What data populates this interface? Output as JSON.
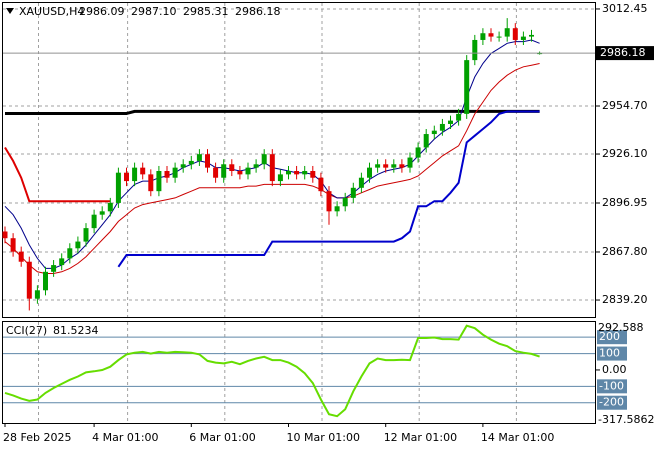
{
  "chart_data": [
    {
      "type": "candlestick",
      "title": "XAUUSD,H4",
      "ohlc_labels": [
        "2986.09",
        "2987.10",
        "2985.31",
        "2986.18"
      ],
      "categories": [
        "28 Feb 2025",
        null,
        null,
        null,
        null,
        null,
        null,
        null,
        null,
        null,
        null,
        "4 Mar 01:00",
        null,
        null,
        null,
        null,
        null,
        null,
        null,
        null,
        null,
        null,
        null,
        "6 Mar 01:00",
        null,
        null,
        null,
        null,
        null,
        null,
        null,
        null,
        null,
        null,
        null,
        "10 Mar 01:00",
        null,
        null,
        null,
        null,
        null,
        null,
        null,
        null,
        null,
        null,
        null,
        "12 Mar 01:00",
        null,
        null,
        null,
        null,
        null,
        null,
        null,
        null,
        null,
        null,
        null,
        "14 Mar 01:00",
        null,
        null,
        null,
        null,
        null,
        null,
        null
      ],
      "candles": {
        "open": [
          2880,
          2876,
          2868,
          2862,
          2840,
          2845,
          2856,
          2860,
          2864,
          2870,
          2874,
          2882,
          2890,
          2892,
          2897,
          2915,
          2910,
          2918,
          2914,
          2904,
          2916,
          2912,
          2918,
          2920,
          2922,
          2926,
          2918,
          2912,
          2920,
          2916,
          2914,
          2918,
          2920,
          2926,
          2910,
          2914,
          2916,
          2914,
          2916,
          2912,
          2904,
          2892,
          2895,
          2900,
          2906,
          2912,
          2918,
          2920,
          2918,
          2920,
          2918,
          2924,
          2930,
          2938,
          2940,
          2944,
          2946,
          2950,
          2982,
          2994,
          2998,
          2996,
          2996,
          3001,
          2994,
          2996,
          2986.09
        ],
        "high": [
          2883,
          2879,
          2871,
          2865,
          2848,
          2859,
          2863,
          2867,
          2873,
          2877,
          2885,
          2893,
          2895,
          2900,
          2918,
          2918,
          2921,
          2921,
          2917,
          2919,
          2919,
          2921,
          2923,
          2925,
          2929,
          2929,
          2921,
          2923,
          2923,
          2919,
          2921,
          2923,
          2929,
          2929,
          2917,
          2919,
          2919,
          2919,
          2919,
          2915,
          2907,
          2898,
          2903,
          2909,
          2915,
          2921,
          2923,
          2923,
          2923,
          2923,
          2927,
          2933,
          2941,
          2943,
          2947,
          2949,
          2953,
          2985,
          2997,
          3001,
          3001,
          2999,
          3007,
          3004,
          2999,
          3000,
          2987.1
        ],
        "low": [
          2873,
          2865,
          2859,
          2833,
          2837,
          2842,
          2853,
          2857,
          2861,
          2867,
          2871,
          2879,
          2887,
          2889,
          2894,
          2907,
          2907,
          2911,
          2901,
          2901,
          2909,
          2909,
          2915,
          2917,
          2919,
          2915,
          2909,
          2909,
          2913,
          2911,
          2911,
          2915,
          2917,
          2907,
          2907,
          2911,
          2911,
          2911,
          2909,
          2901,
          2884,
          2889,
          2892,
          2897,
          2903,
          2909,
          2915,
          2915,
          2915,
          2915,
          2915,
          2921,
          2927,
          2935,
          2937,
          2941,
          2943,
          2947,
          2979,
          2991,
          2993,
          2993,
          2993,
          2991,
          2991,
          2993,
          2985.31
        ],
        "close": [
          2876,
          2868,
          2862,
          2840,
          2845,
          2856,
          2860,
          2864,
          2870,
          2874,
          2882,
          2890,
          2892,
          2897,
          2915,
          2910,
          2918,
          2914,
          2904,
          2916,
          2912,
          2918,
          2920,
          2922,
          2926,
          2918,
          2912,
          2920,
          2916,
          2914,
          2918,
          2920,
          2926,
          2910,
          2914,
          2916,
          2914,
          2916,
          2912,
          2904,
          2892,
          2895,
          2900,
          2906,
          2912,
          2918,
          2920,
          2918,
          2920,
          2918,
          2924,
          2930,
          2938,
          2940,
          2944,
          2946,
          2950,
          2982,
          2994,
          2998,
          2996,
          2996,
          3001,
          2994,
          2996,
          2997,
          2986.18
        ],
        "up_color": "#00a000",
        "down_color": "#e00000"
      },
      "series": [
        {
          "color": "#000000",
          "width": 3,
          "values": [
            2950.2,
            2950.2,
            2950.2,
            2950.2,
            2950.2,
            2950.2,
            2950.2,
            2950.2,
            2950.2,
            2950.2,
            2950.2,
            2950.2,
            2950.2,
            2950.2,
            2950.2,
            2950.2,
            2951.5,
            2951.5,
            2951.5,
            2951.5,
            2951.5,
            2951.5,
            2951.5,
            2951.5,
            2951.5,
            2951.5,
            2951.5,
            2951.5,
            2951.5,
            2951.5,
            2951.5,
            2951.5,
            2951.5,
            2951.5,
            2951.5,
            2951.5,
            2951.5,
            2951.5,
            2951.5,
            2951.5,
            2951.5,
            2951.5,
            2951.5,
            2951.5,
            2951.5,
            2951.5,
            2951.5,
            2951.5,
            2951.5,
            2951.5,
            2951.5,
            2951.5,
            2951.5,
            2951.5,
            2951.5,
            2951.5,
            2951.5,
            2951.5,
            2951.5,
            2951.5,
            2951.5,
            2951.5,
            2951.5,
            2951.5,
            2951.5,
            2951.5,
            2951.5
          ]
        },
        {
          "color": "#dd0000",
          "width": 2,
          "values": [
            2930,
            2922,
            2912,
            2898,
            2898,
            2898,
            2898,
            2898,
            2898,
            2898,
            2898,
            2898,
            2898,
            2898,
            null,
            null,
            null,
            null,
            null,
            null,
            null,
            null,
            null,
            null,
            null,
            null,
            null,
            null,
            null,
            null,
            null,
            null,
            null,
            null,
            null,
            null,
            null,
            null,
            null,
            null,
            null,
            null,
            null,
            null,
            null,
            null,
            null,
            null,
            null,
            null,
            null,
            null,
            null,
            null,
            null,
            null,
            null,
            null,
            null,
            null,
            null,
            null,
            null,
            null,
            null,
            null,
            null
          ]
        },
        {
          "color": "#0000cc",
          "width": 2,
          "values": [
            null,
            null,
            null,
            null,
            null,
            null,
            null,
            null,
            null,
            null,
            null,
            null,
            null,
            null,
            2859,
            2866,
            2866,
            2866,
            2866,
            2866,
            2866,
            2866,
            2866,
            2866,
            2866,
            2866,
            2866,
            2866,
            2866,
            2866,
            2866,
            2866,
            2866,
            2874,
            2874,
            2874,
            2874,
            2874,
            2874,
            2874,
            2874,
            2874,
            2874,
            2874,
            2874,
            2874,
            2874,
            2874,
            2874,
            2876,
            2880,
            2895,
            2895,
            2898,
            2898,
            2903,
            2909,
            2933,
            2937,
            2941,
            2945,
            2950,
            2951.4,
            2951.4,
            2951.4,
            2951.4,
            2951.4
          ]
        },
        {
          "color": "#cc0000",
          "width": 1,
          "values": [
            2874,
            2870,
            2865,
            2860,
            2856,
            2855,
            2855,
            2856,
            2858,
            2861,
            2865,
            2870,
            2875,
            2880,
            2886,
            2890,
            2894,
            2896,
            2897,
            2898,
            2899,
            2900,
            2902,
            2904,
            2906,
            2906,
            2906,
            2906,
            2906,
            2906,
            2907,
            2907,
            2908,
            2908,
            2908,
            2908,
            2908,
            2908,
            2907,
            2905,
            2902,
            2900,
            2900,
            2901,
            2903,
            2905,
            2907,
            2908,
            2909,
            2910,
            2911,
            2913,
            2917,
            2921,
            2925,
            2928,
            2931,
            2940,
            2950,
            2957,
            2964,
            2969,
            2973,
            2976,
            2978,
            2979,
            2980
          ]
        },
        {
          "color": "#00008b",
          "width": 1,
          "values": [
            2895,
            2890,
            2882,
            2872,
            2864,
            2858,
            2858,
            2860,
            2864,
            2867,
            2872,
            2878,
            2884,
            2890,
            2898,
            2903,
            2908,
            2910,
            2910,
            2912,
            2913,
            2915,
            2918,
            2920,
            2922,
            2921,
            2918,
            2918,
            2917,
            2916,
            2917,
            2918,
            2921,
            2918,
            2917,
            2916,
            2915,
            2915,
            2914,
            2910,
            2903,
            2900,
            2900,
            2903,
            2907,
            2911,
            2914,
            2916,
            2917,
            2918,
            2920,
            2925,
            2930,
            2935,
            2939,
            2942,
            2946,
            2960,
            2972,
            2980,
            2986,
            2989,
            2992,
            2993,
            2993,
            2994,
            2992
          ]
        }
      ],
      "ylim": [
        2829.1,
        3016.0
      ],
      "yticks": [
        3012.45,
        {
          "value": 2954.7,
          "label": "2954.70"
        },
        {
          "value": 2926.1,
          "label": "2926.10"
        },
        2896.95,
        {
          "value": 2867.8,
          "label": "2867.80"
        },
        {
          "value": 2839.2,
          "label": "2839.20"
        }
      ],
      "grid": true
    },
    {
      "type": "line",
      "title": "CCI(27)",
      "series": [
        {
          "color": "#66dd00",
          "width": 2,
          "values": [
            -140,
            -155,
            -175,
            -188,
            -180,
            -140,
            -110,
            -85,
            -60,
            -40,
            -15,
            -8,
            0,
            20,
            60,
            95,
            105,
            110,
            100,
            110,
            105,
            110,
            108,
            105,
            95,
            55,
            45,
            40,
            50,
            35,
            55,
            70,
            80,
            60,
            60,
            45,
            20,
            -20,
            -80,
            -180,
            -270,
            -282,
            -240,
            -130,
            -40,
            40,
            70,
            60,
            60,
            62,
            60,
            195,
            195,
            198,
            188,
            188,
            185,
            270,
            255,
            215,
            185,
            160,
            145,
            115,
            105,
            98,
            81.5234
          ]
        }
      ],
      "ylim": [
        -317.5862,
        292.588
      ],
      "yticks": [
        200,
        100,
        {
          "value": 0,
          "label": "0.00"
        },
        -100,
        -200
      ],
      "level_color": "#5f87a8"
    }
  ]
}
